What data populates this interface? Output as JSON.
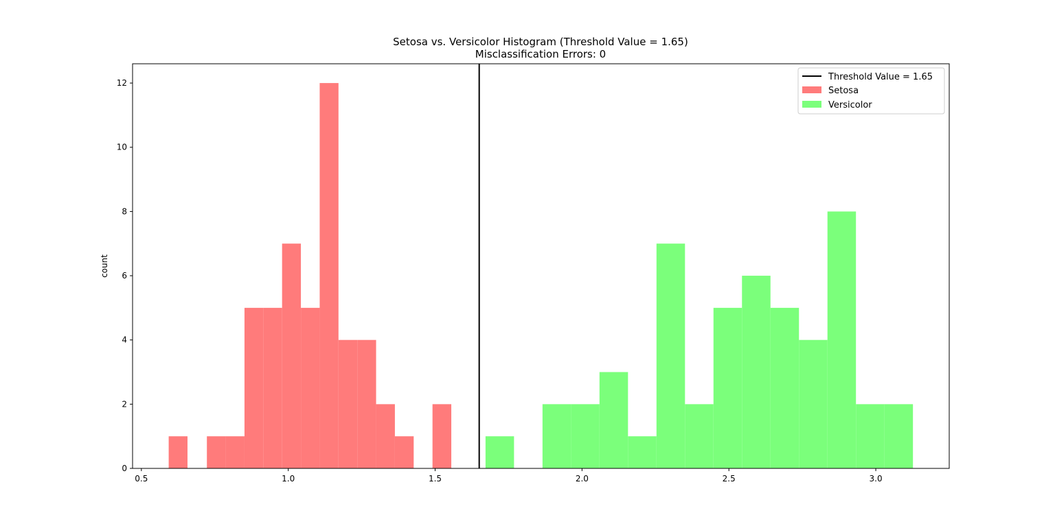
{
  "chart_data": {
    "type": "bar",
    "title": "Setosa vs. Versicolor Histogram (Threshold Value = 1.65)",
    "subtitle": "Misclassification Errors: 0",
    "xlabel": "",
    "ylabel": "count",
    "xlim": [
      0.47,
      3.25
    ],
    "ylim": [
      0,
      12.6
    ],
    "xticks": [
      0.5,
      1.0,
      1.5,
      2.0,
      2.5,
      3.0
    ],
    "xtick_labels": [
      "0.5",
      "1.0",
      "1.5",
      "2.0",
      "2.5",
      "3.0"
    ],
    "yticks": [
      0,
      2,
      4,
      6,
      8,
      10,
      12
    ],
    "ytick_labels": [
      "0",
      "2",
      "4",
      "6",
      "8",
      "10",
      "12"
    ],
    "threshold": {
      "value": 1.65,
      "label": "Threshold Value = 1.65",
      "color": "#000000"
    },
    "legend_position": "top-right",
    "grid": false,
    "series": [
      {
        "name": "Setosa",
        "color": "#ff7b7b",
        "bins": [
          {
            "x": 0.625,
            "width": 0.064,
            "count": 1
          },
          {
            "x": 0.755,
            "width": 0.064,
            "count": 1
          },
          {
            "x": 0.819,
            "width": 0.064,
            "count": 1
          },
          {
            "x": 0.883,
            "width": 0.064,
            "count": 5
          },
          {
            "x": 0.947,
            "width": 0.064,
            "count": 5
          },
          {
            "x": 1.011,
            "width": 0.064,
            "count": 7
          },
          {
            "x": 1.075,
            "width": 0.064,
            "count": 5
          },
          {
            "x": 1.139,
            "width": 0.064,
            "count": 12
          },
          {
            "x": 1.203,
            "width": 0.064,
            "count": 4
          },
          {
            "x": 1.267,
            "width": 0.064,
            "count": 4
          },
          {
            "x": 1.331,
            "width": 0.064,
            "count": 2
          },
          {
            "x": 1.395,
            "width": 0.064,
            "count": 1
          },
          {
            "x": 1.523,
            "width": 0.064,
            "count": 2
          }
        ]
      },
      {
        "name": "Versicolor",
        "color": "#7bff7b",
        "bins": [
          {
            "x": 1.72,
            "width": 0.097,
            "count": 1
          },
          {
            "x": 1.914,
            "width": 0.097,
            "count": 2
          },
          {
            "x": 2.011,
            "width": 0.097,
            "count": 2
          },
          {
            "x": 2.108,
            "width": 0.097,
            "count": 3
          },
          {
            "x": 2.205,
            "width": 0.097,
            "count": 1
          },
          {
            "x": 2.302,
            "width": 0.097,
            "count": 7
          },
          {
            "x": 2.399,
            "width": 0.097,
            "count": 2
          },
          {
            "x": 2.496,
            "width": 0.097,
            "count": 5
          },
          {
            "x": 2.593,
            "width": 0.097,
            "count": 6
          },
          {
            "x": 2.69,
            "width": 0.097,
            "count": 5
          },
          {
            "x": 2.787,
            "width": 0.097,
            "count": 4
          },
          {
            "x": 2.884,
            "width": 0.097,
            "count": 8
          },
          {
            "x": 2.981,
            "width": 0.097,
            "count": 2
          },
          {
            "x": 3.078,
            "width": 0.097,
            "count": 2
          }
        ]
      }
    ]
  }
}
